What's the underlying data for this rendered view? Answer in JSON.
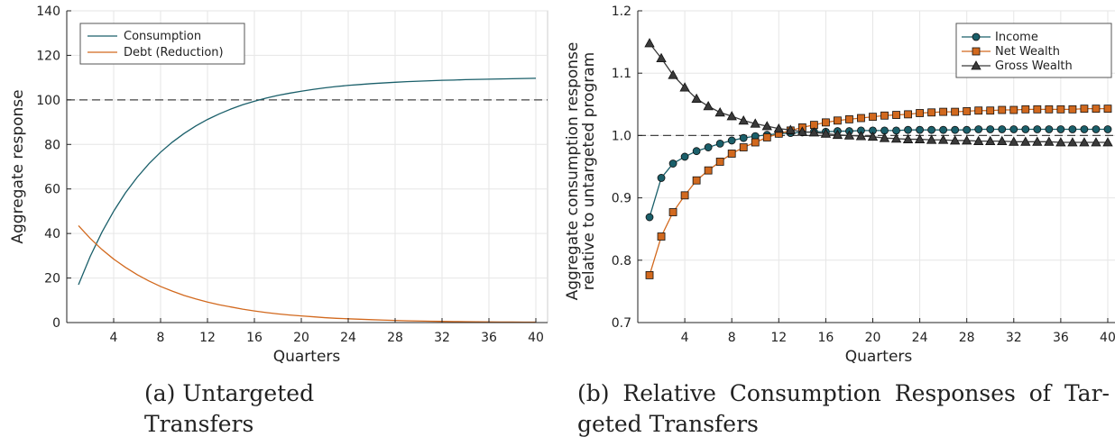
{
  "captions": {
    "a": "(a) Untargeted Transfers",
    "b_line1": "(b) Relative Consumption Responses of Tar-",
    "b_line2": "geted Transfers"
  },
  "colors": {
    "teal": "#1a5f6a",
    "orange": "#d2691e",
    "dark": "#3a3a3a"
  },
  "chart_data": [
    {
      "type": "line",
      "xlabel": "Quarters",
      "ylabel": "Aggregate response",
      "xlim": [
        0,
        41
      ],
      "ylim": [
        0,
        140
      ],
      "xticks": [
        4,
        8,
        12,
        16,
        20,
        24,
        28,
        32,
        36,
        40
      ],
      "yticks": [
        0,
        20,
        40,
        60,
        80,
        100,
        120,
        140
      ],
      "grid": true,
      "legend_position": "top-left",
      "reference_line": 100,
      "x": [
        1,
        2,
        3,
        4,
        5,
        6,
        7,
        8,
        9,
        10,
        11,
        12,
        13,
        14,
        15,
        16,
        17,
        18,
        19,
        20,
        21,
        22,
        23,
        24,
        25,
        26,
        27,
        28,
        29,
        30,
        31,
        32,
        33,
        34,
        35,
        36,
        37,
        38,
        39,
        40
      ],
      "series": [
        {
          "name": "Consumption",
          "color": "#1a5f6a",
          "values": [
            17.0,
            29.7,
            40.6,
            50.0,
            58.2,
            65.2,
            71.3,
            76.5,
            81.0,
            84.9,
            88.3,
            91.2,
            93.7,
            95.9,
            97.8,
            99.4,
            100.8,
            102.0,
            103.0,
            103.9,
            104.7,
            105.4,
            106.0,
            106.5,
            106.9,
            107.3,
            107.6,
            107.9,
            108.2,
            108.4,
            108.6,
            108.8,
            108.9,
            109.1,
            109.2,
            109.3,
            109.4,
            109.5,
            109.6,
            109.7
          ]
        },
        {
          "name": "Debt (Reduction)",
          "color": "#d2691e",
          "values": [
            43.5,
            37.8,
            32.8,
            28.5,
            24.8,
            21.5,
            18.7,
            16.2,
            14.1,
            12.2,
            10.6,
            9.2,
            8.0,
            7.0,
            6.0,
            5.2,
            4.5,
            3.9,
            3.4,
            3.0,
            2.6,
            2.2,
            1.9,
            1.7,
            1.5,
            1.3,
            1.1,
            0.95,
            0.82,
            0.71,
            0.62,
            0.54,
            0.47,
            0.41,
            0.35,
            0.3,
            0.26,
            0.23,
            0.2,
            0.17
          ]
        }
      ]
    },
    {
      "type": "line",
      "xlabel": "Quarters",
      "ylabel_line1": "Aggregate consumption response",
      "ylabel_line2": "relative to untargeted program",
      "xlim": [
        0,
        41
      ],
      "ylim": [
        0.7,
        1.2
      ],
      "xticks": [
        4,
        8,
        12,
        16,
        20,
        24,
        28,
        32,
        36,
        40
      ],
      "yticks": [
        0.7,
        0.8,
        0.9,
        1.0,
        1.1,
        1.2
      ],
      "ytick_labels": [
        "0.7",
        "0.8",
        "0.9",
        "1.0",
        "1.1",
        "1.2"
      ],
      "grid": true,
      "legend_position": "top-right",
      "reference_line": 1.0,
      "x": [
        1,
        2,
        3,
        4,
        5,
        6,
        7,
        8,
        9,
        10,
        11,
        12,
        13,
        14,
        15,
        16,
        17,
        18,
        19,
        20,
        21,
        22,
        23,
        24,
        25,
        26,
        27,
        28,
        29,
        30,
        31,
        32,
        33,
        34,
        35,
        36,
        37,
        38,
        39,
        40
      ],
      "series": [
        {
          "name": "Income",
          "marker": "circle",
          "color": "#1a5f6a",
          "values": [
            0.869,
            0.932,
            0.955,
            0.966,
            0.975,
            0.981,
            0.987,
            0.992,
            0.996,
            0.999,
            1.001,
            1.003,
            1.004,
            1.005,
            1.006,
            1.006,
            1.007,
            1.007,
            1.008,
            1.008,
            1.008,
            1.008,
            1.009,
            1.009,
            1.009,
            1.009,
            1.009,
            1.009,
            1.01,
            1.01,
            1.01,
            1.01,
            1.01,
            1.01,
            1.01,
            1.01,
            1.01,
            1.01,
            1.01,
            1.01
          ]
        },
        {
          "name": "Net Wealth",
          "marker": "square",
          "color": "#d2691e",
          "values": [
            0.776,
            0.838,
            0.877,
            0.904,
            0.928,
            0.944,
            0.958,
            0.971,
            0.981,
            0.989,
            0.997,
            1.003,
            1.008,
            1.013,
            1.017,
            1.021,
            1.024,
            1.026,
            1.028,
            1.03,
            1.032,
            1.033,
            1.034,
            1.036,
            1.037,
            1.038,
            1.038,
            1.039,
            1.04,
            1.04,
            1.041,
            1.041,
            1.042,
            1.042,
            1.042,
            1.042,
            1.042,
            1.043,
            1.043,
            1.043
          ]
        },
        {
          "name": "Gross Wealth",
          "marker": "triangle",
          "color": "#3a3a3a",
          "values": [
            1.148,
            1.124,
            1.097,
            1.077,
            1.059,
            1.047,
            1.037,
            1.031,
            1.024,
            1.019,
            1.015,
            1.011,
            1.009,
            1.006,
            1.005,
            1.003,
            1.001,
            1.0,
            0.999,
            0.998,
            0.996,
            0.995,
            0.994,
            0.994,
            0.993,
            0.993,
            0.992,
            0.992,
            0.991,
            0.991,
            0.991,
            0.99,
            0.99,
            0.99,
            0.99,
            0.989,
            0.989,
            0.989,
            0.989,
            0.989
          ]
        }
      ]
    }
  ]
}
